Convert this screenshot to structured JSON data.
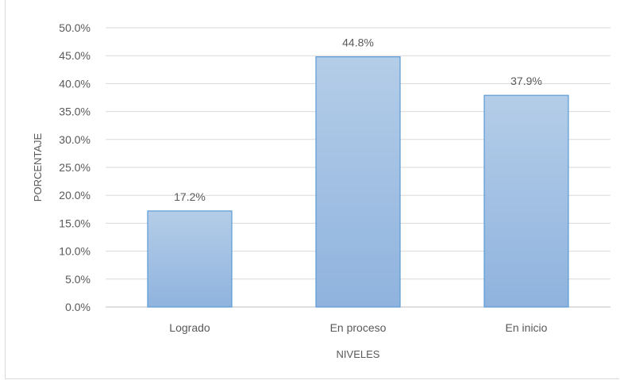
{
  "chart_data": {
    "type": "bar",
    "categories": [
      "Logrado",
      "En proceso",
      "En inicio"
    ],
    "values": [
      17.2,
      44.8,
      37.9
    ],
    "value_labels": [
      "17.2%",
      "44.8%",
      "37.9%"
    ],
    "title": "",
    "xlabel": "NIVELES",
    "ylabel": "PORCENTAJE",
    "ylim": [
      0,
      50
    ],
    "ytick_step": 5,
    "ytick_labels": [
      "0.0%",
      "5.0%",
      "10.0%",
      "15.0%",
      "20.0%",
      "25.0%",
      "30.0%",
      "35.0%",
      "40.0%",
      "45.0%",
      "50.0%"
    ],
    "grid": true,
    "legend": "none",
    "colors": {
      "bar_fill_top": "#b4cde8",
      "bar_fill_bottom": "#8fb3de",
      "bar_stroke": "#5b9bd5",
      "gridline": "#d9d9d9",
      "text": "#595959"
    }
  }
}
